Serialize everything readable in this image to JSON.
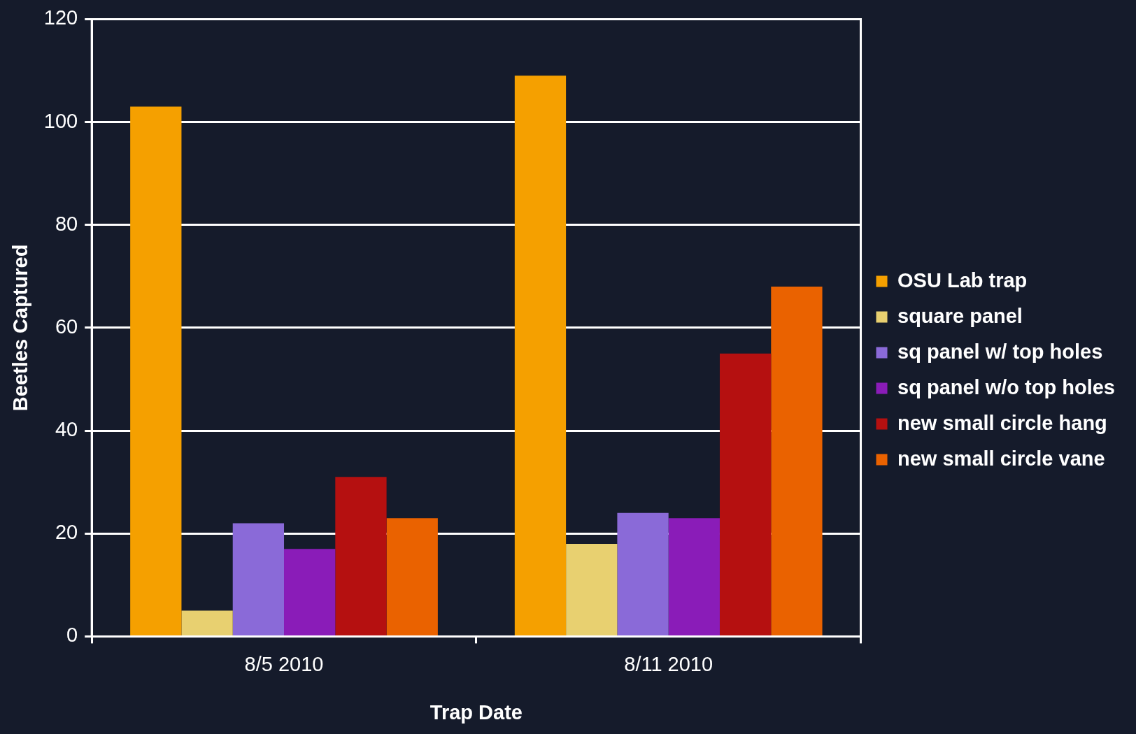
{
  "chart_data": {
    "type": "bar",
    "xlabel": "Trap Date",
    "ylabel": "Beetles Captured",
    "categories": [
      "8/5 2010",
      "8/11 2010"
    ],
    "series": [
      {
        "name": "OSU Lab trap",
        "color": "#f5a000",
        "values": [
          103,
          109
        ]
      },
      {
        "name": "square panel",
        "color": "#e8d070",
        "values": [
          5,
          18
        ]
      },
      {
        "name": "sq panel w/ top holes",
        "color": "#8a6ad8",
        "values": [
          22,
          24
        ]
      },
      {
        "name": "sq panel w/o top holes",
        "color": "#8a1cb8",
        "values": [
          17,
          23
        ]
      },
      {
        "name": "new small circle hang",
        "color": "#b51010",
        "values": [
          31,
          55
        ]
      },
      {
        "name": "new small circle vane",
        "color": "#ea6200",
        "values": [
          23,
          68
        ]
      }
    ],
    "ylim": [
      0,
      120
    ],
    "yticks": [
      0,
      20,
      40,
      60,
      80,
      100,
      120
    ],
    "grid": "y",
    "legend": "right"
  }
}
